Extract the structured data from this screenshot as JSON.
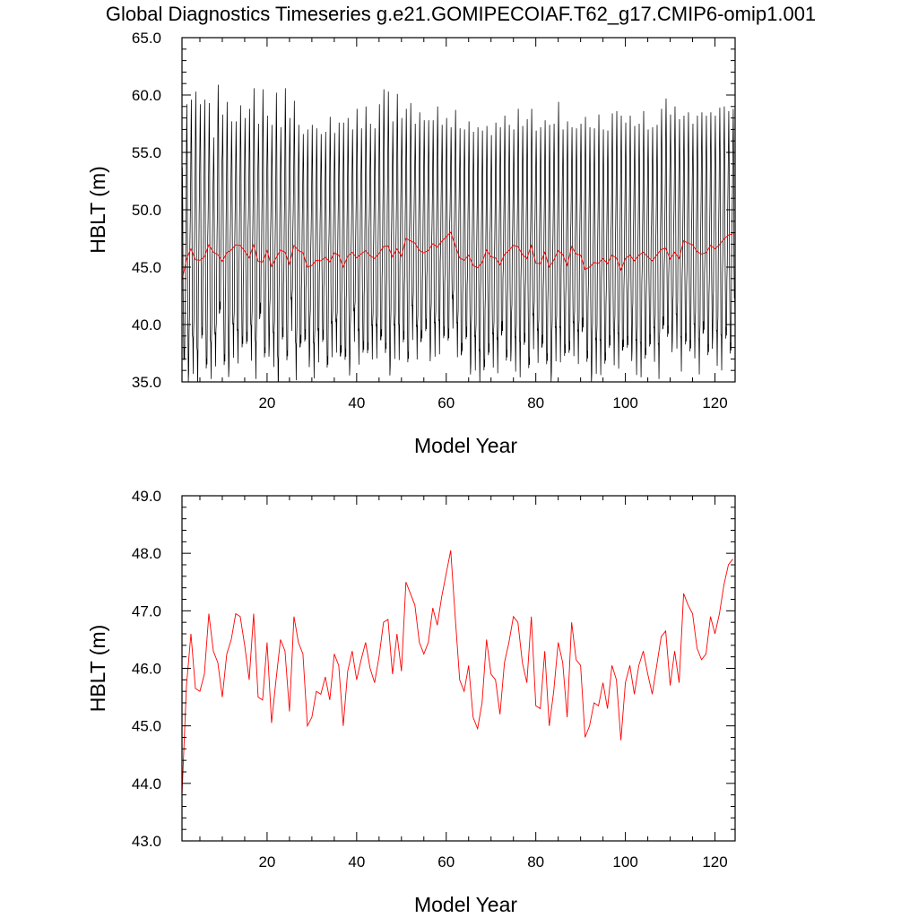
{
  "title": "Global Diagnostics Timeseries g.e21.GOMIPECOIAF.T62_g17.CMIP6-omip1.001",
  "colors": {
    "monthly": "#000000",
    "annual": "#ff0000",
    "axes": "#000000",
    "background": "#ffffff"
  },
  "chart_data": [
    {
      "type": "line",
      "xlabel": "Model Year",
      "ylabel": "HBLT (m)",
      "xlim": [
        1,
        124.5
      ],
      "ylim": [
        35.0,
        65.0
      ],
      "xticks": [
        20,
        40,
        60,
        80,
        100,
        120
      ],
      "xtick_labels": [
        "20",
        "40",
        "60",
        "80",
        "100",
        "120"
      ],
      "yticks": [
        35,
        40,
        45,
        50,
        55,
        60,
        65
      ],
      "ytick_labels": [
        "35.0",
        "40.0",
        "45.0",
        "50.0",
        "55.0",
        "60.0",
        "65.0"
      ],
      "grid": false,
      "series": [
        {
          "name": "",
          "kind": "monthly",
          "color": "#000000",
          "note": "12 values per model year; seasonal min near 36-42 m and max near 56-61 m",
          "annual_max": [
            53.7,
            59.2,
            59.6,
            60.3,
            59.2,
            59.6,
            59.3,
            56.3,
            60.9,
            58.3,
            59.4,
            57.7,
            57.7,
            59.1,
            58.0,
            58.8,
            60.6,
            57.5,
            60.5,
            58.2,
            57.4,
            60.2,
            57.2,
            60.6,
            58.0,
            59.5,
            57.4,
            56.6,
            57.0,
            57.4,
            57.1,
            56.6,
            56.8,
            58.1,
            56.7,
            57.6,
            57.6,
            58.0,
            57.0,
            58.8,
            57.1,
            59.0,
            57.5,
            57.1,
            59.2,
            60.5,
            60.3,
            57.7,
            60.1,
            58.0,
            58.8,
            59.3,
            57.5,
            58.5,
            57.8,
            57.8,
            57.8,
            59.0,
            57.4,
            58.0,
            57.2,
            58.7,
            57.1,
            57.0,
            57.7,
            56.8,
            57.2,
            56.9,
            57.3,
            56.5,
            57.6,
            57.2,
            58.2,
            57.4,
            57.0,
            58.8,
            57.3,
            57.9,
            58.8,
            56.9,
            57.2,
            57.8,
            57.4,
            57.5,
            59.4,
            57.0,
            57.7,
            57.2,
            57.1,
            57.5,
            58.1,
            57.2,
            57.1,
            58.3,
            57.0,
            56.9,
            58.4,
            58.6,
            58.2,
            57.6,
            58.2,
            57.3,
            57.5,
            58.6,
            57.0,
            57.2,
            57.4,
            58.8,
            59.7,
            58.3,
            59.0,
            57.9,
            58.2,
            58.5,
            57.5,
            58.2,
            58.5,
            58.2,
            58.5,
            58.2,
            58.9,
            59.0,
            58.6,
            58.8
          ],
          "annual_min": [
            37.1,
            35.9,
            36.6,
            36.3,
            38.4,
            36.6,
            35.7,
            37.7,
            40.2,
            36.5,
            36.3,
            38.0,
            38.4,
            37.6,
            38.9,
            37.3,
            36.6,
            40.1,
            37.1,
            38.2,
            37.2,
            35.6,
            38.4,
            37.3,
            39.9,
            36.5,
            37.3,
            38.7,
            37.3,
            36.2,
            38.5,
            38.2,
            36.8,
            37.6,
            38.9,
            36.4,
            37.0,
            36.5,
            39.4,
            38.3,
            37.2,
            38.0,
            37.4,
            38.4,
            37.8,
            37.5,
            36.4,
            37.9,
            38.7,
            38.1,
            37.2,
            39.1,
            38.3,
            37.7,
            39.6,
            37.8,
            38.1,
            39.2,
            38.5,
            39.2,
            40.1,
            38.5,
            36.6,
            38.9,
            36.6,
            36.9,
            36.5,
            35.6,
            37.9,
            36.7,
            37.1,
            38.5,
            36.9,
            37.8,
            36.8,
            37.2,
            37.9,
            36.7,
            38.3,
            38.0,
            37.3,
            36.6,
            35.9,
            37.7,
            38.5,
            36.9,
            38.1,
            37.7,
            37.9,
            38.8,
            36.8,
            35.8,
            36.6,
            37.4,
            36.2,
            38.6,
            36.9,
            37.5,
            36.9,
            38.1,
            37.8,
            36.5,
            37.2,
            36.6,
            38.7,
            37.2,
            36.6,
            38.9,
            39.0,
            38.6,
            38.8,
            37.7,
            37.9,
            38.2,
            37.5,
            37.0,
            38.5,
            37.4,
            38.9,
            37.3,
            37.8,
            38.4,
            38.0,
            39.9
          ]
        },
        {
          "name": "",
          "kind": "annual",
          "color": "#ff0000",
          "x": [
            1,
            2,
            3,
            4,
            5,
            6,
            7,
            8,
            9,
            10,
            11,
            12,
            13,
            14,
            15,
            16,
            17,
            18,
            19,
            20,
            21,
            22,
            23,
            24,
            25,
            26,
            27,
            28,
            29,
            30,
            31,
            32,
            33,
            34,
            35,
            36,
            37,
            38,
            39,
            40,
            41,
            42,
            43,
            44,
            45,
            46,
            47,
            48,
            49,
            50,
            51,
            52,
            53,
            54,
            55,
            56,
            57,
            58,
            59,
            60,
            61,
            62,
            63,
            64,
            65,
            66,
            67,
            68,
            69,
            70,
            71,
            72,
            73,
            74,
            75,
            76,
            77,
            78,
            79,
            80,
            81,
            82,
            83,
            84,
            85,
            86,
            87,
            88,
            89,
            90,
            91,
            92,
            93,
            94,
            95,
            96,
            97,
            98,
            99,
            100,
            101,
            102,
            103,
            104,
            105,
            106,
            107,
            108,
            109,
            110,
            111,
            112,
            113,
            114,
            115,
            116,
            117,
            118,
            119,
            120,
            121,
            122,
            123,
            124
          ],
          "y": [
            43.8,
            45.7,
            46.6,
            45.65,
            45.6,
            45.9,
            46.95,
            46.3,
            46.1,
            45.5,
            46.25,
            46.5,
            46.95,
            46.9,
            46.4,
            45.8,
            46.95,
            45.5,
            45.45,
            46.45,
            45.05,
            45.8,
            46.5,
            46.3,
            45.25,
            46.9,
            46.45,
            46.25,
            45.0,
            45.15,
            45.6,
            45.55,
            45.85,
            45.45,
            46.25,
            46.05,
            45.0,
            45.95,
            46.3,
            45.8,
            46.15,
            46.45,
            46.0,
            45.75,
            46.2,
            46.8,
            46.85,
            45.9,
            46.6,
            45.95,
            47.5,
            47.3,
            47.1,
            46.45,
            46.25,
            46.45,
            47.05,
            46.75,
            47.25,
            47.65,
            48.05,
            46.9,
            45.8,
            45.6,
            46.05,
            45.15,
            44.95,
            45.4,
            46.5,
            45.9,
            45.8,
            45.2,
            46.1,
            46.45,
            46.9,
            46.8,
            46.1,
            45.75,
            46.9,
            45.35,
            45.3,
            46.3,
            45.0,
            45.6,
            46.45,
            46.1,
            45.15,
            46.8,
            46.15,
            46.05,
            44.8,
            45.0,
            45.4,
            45.35,
            45.75,
            45.3,
            46.05,
            45.8,
            44.75,
            45.75,
            46.05,
            45.55,
            46.05,
            46.3,
            45.9,
            45.55,
            46.05,
            46.55,
            46.65,
            45.7,
            46.3,
            45.75,
            47.3,
            47.1,
            46.95,
            46.35,
            46.15,
            46.25,
            46.9,
            46.6,
            46.95,
            47.45,
            47.8,
            47.9
          ]
        }
      ]
    },
    {
      "type": "line",
      "xlabel": "Model Year",
      "ylabel": "HBLT (m)",
      "xlim": [
        1,
        124.5
      ],
      "ylim": [
        43.0,
        49.0
      ],
      "xticks": [
        20,
        40,
        60,
        80,
        100,
        120
      ],
      "xtick_labels": [
        "20",
        "40",
        "60",
        "80",
        "100",
        "120"
      ],
      "yticks": [
        43,
        44,
        45,
        46,
        47,
        48,
        49
      ],
      "ytick_labels": [
        "43.0",
        "44.0",
        "45.0",
        "46.0",
        "47.0",
        "48.0",
        "49.0"
      ],
      "grid": false,
      "series": [
        {
          "name": "",
          "kind": "annual",
          "color": "#ff0000",
          "x": [
            1,
            2,
            3,
            4,
            5,
            6,
            7,
            8,
            9,
            10,
            11,
            12,
            13,
            14,
            15,
            16,
            17,
            18,
            19,
            20,
            21,
            22,
            23,
            24,
            25,
            26,
            27,
            28,
            29,
            30,
            31,
            32,
            33,
            34,
            35,
            36,
            37,
            38,
            39,
            40,
            41,
            42,
            43,
            44,
            45,
            46,
            47,
            48,
            49,
            50,
            51,
            52,
            53,
            54,
            55,
            56,
            57,
            58,
            59,
            60,
            61,
            62,
            63,
            64,
            65,
            66,
            67,
            68,
            69,
            70,
            71,
            72,
            73,
            74,
            75,
            76,
            77,
            78,
            79,
            80,
            81,
            82,
            83,
            84,
            85,
            86,
            87,
            88,
            89,
            90,
            91,
            92,
            93,
            94,
            95,
            96,
            97,
            98,
            99,
            100,
            101,
            102,
            103,
            104,
            105,
            106,
            107,
            108,
            109,
            110,
            111,
            112,
            113,
            114,
            115,
            116,
            117,
            118,
            119,
            120,
            121,
            122,
            123,
            124
          ],
          "y": [
            43.8,
            45.7,
            46.6,
            45.65,
            45.6,
            45.9,
            46.95,
            46.3,
            46.1,
            45.5,
            46.25,
            46.5,
            46.95,
            46.9,
            46.4,
            45.8,
            46.95,
            45.5,
            45.45,
            46.45,
            45.05,
            45.8,
            46.5,
            46.3,
            45.25,
            46.9,
            46.45,
            46.25,
            45.0,
            45.15,
            45.6,
            45.55,
            45.85,
            45.45,
            46.25,
            46.05,
            45.0,
            45.95,
            46.3,
            45.8,
            46.15,
            46.45,
            46.0,
            45.75,
            46.2,
            46.8,
            46.85,
            45.9,
            46.6,
            45.95,
            47.5,
            47.3,
            47.1,
            46.45,
            46.25,
            46.45,
            47.05,
            46.75,
            47.25,
            47.65,
            48.05,
            46.9,
            45.8,
            45.6,
            46.05,
            45.15,
            44.95,
            45.4,
            46.5,
            45.9,
            45.8,
            45.2,
            46.1,
            46.45,
            46.9,
            46.8,
            46.1,
            45.75,
            46.9,
            45.35,
            45.3,
            46.3,
            45.0,
            45.6,
            46.45,
            46.1,
            45.15,
            46.8,
            46.15,
            46.05,
            44.8,
            45.0,
            45.4,
            45.35,
            45.75,
            45.3,
            46.05,
            45.8,
            44.75,
            45.75,
            46.05,
            45.55,
            46.05,
            46.3,
            45.9,
            45.55,
            46.05,
            46.55,
            46.65,
            45.7,
            46.3,
            45.75,
            47.3,
            47.1,
            46.95,
            46.35,
            46.15,
            46.25,
            46.9,
            46.6,
            46.95,
            47.45,
            47.8,
            47.9
          ]
        }
      ]
    }
  ]
}
